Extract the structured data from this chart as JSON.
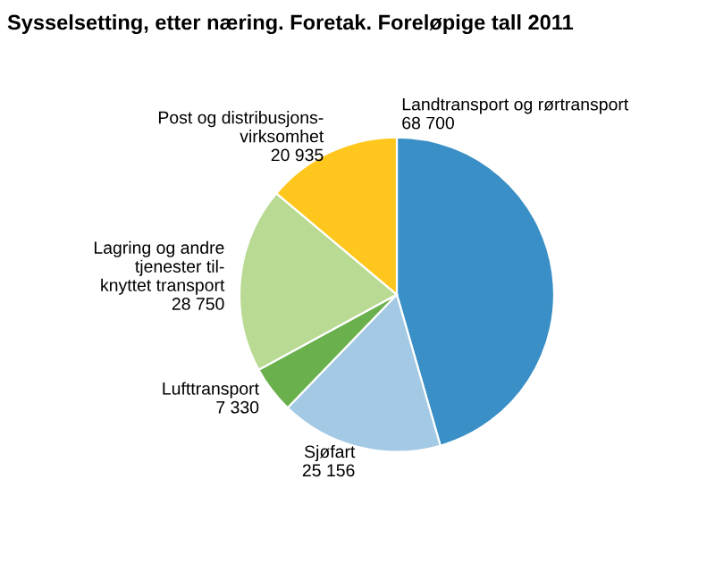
{
  "chart_data": {
    "type": "pie",
    "title": "Sysselsetting, etter næring. Foretak. Foreløpige tall 2011",
    "categories": [
      "Landtransport og rørtransport",
      "Sjøfart",
      "Lufttransport",
      "Lagring og andre\ntjenester til-\nknyttet transport",
      "Post og distribusjons-\nvirksomhet"
    ],
    "values": [
      68700,
      25156,
      7330,
      28750,
      20935
    ],
    "value_labels": [
      "68 700",
      "25 156",
      "7 330",
      "28 750",
      "20 935"
    ],
    "colors": [
      "#3a8fc6",
      "#a3c9e5",
      "#6ab04c",
      "#b8da92",
      "#ffc71e"
    ]
  }
}
